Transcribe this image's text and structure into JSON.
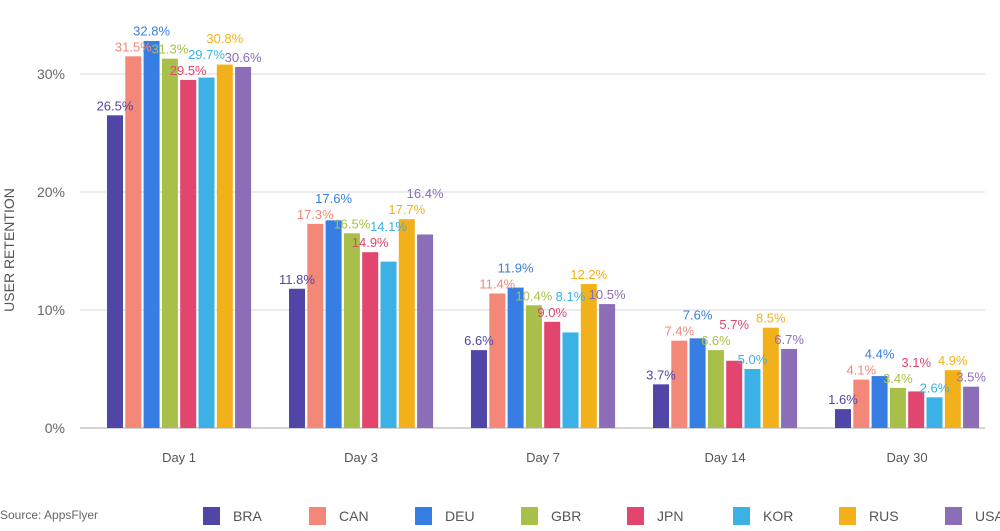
{
  "chart_data": {
    "type": "bar",
    "title": "",
    "xlabel": "",
    "ylabel": "USER RETENTION",
    "ylim": [
      0,
      30
    ],
    "yticks": [
      "0%",
      "10%",
      "20%",
      "30%"
    ],
    "ytick_values": [
      0,
      10,
      20,
      30
    ],
    "grid": true,
    "legend_placement": "bottom",
    "categories": [
      "Day 1",
      "Day 3",
      "Day 7",
      "Day 14",
      "Day 30"
    ],
    "series": [
      {
        "name": "BRA",
        "color": "#5046a8",
        "values": [
          26.5,
          11.8,
          6.6,
          3.7,
          1.6
        ]
      },
      {
        "name": "CAN",
        "color": "#f48878",
        "values": [
          31.5,
          17.3,
          11.4,
          7.4,
          4.1
        ]
      },
      {
        "name": "DEU",
        "color": "#377ee4",
        "values": [
          32.8,
          17.6,
          11.9,
          7.6,
          4.4
        ]
      },
      {
        "name": "GBR",
        "color": "#a8c049",
        "values": [
          31.3,
          16.5,
          10.4,
          6.6,
          3.4
        ]
      },
      {
        "name": "JPN",
        "color": "#e2466e",
        "values": [
          29.5,
          14.9,
          9.0,
          5.7,
          3.1
        ]
      },
      {
        "name": "KOR",
        "color": "#3bb1e6",
        "values": [
          29.7,
          14.1,
          8.1,
          5.0,
          2.6
        ]
      },
      {
        "name": "RUS",
        "color": "#f2b11a",
        "values": [
          30.8,
          17.7,
          12.2,
          8.5,
          4.9
        ]
      },
      {
        "name": "USA",
        "color": "#8b6db8",
        "values": [
          30.6,
          16.4,
          10.5,
          6.7,
          3.5
        ]
      }
    ],
    "source": "Source: AppsFlyer"
  }
}
